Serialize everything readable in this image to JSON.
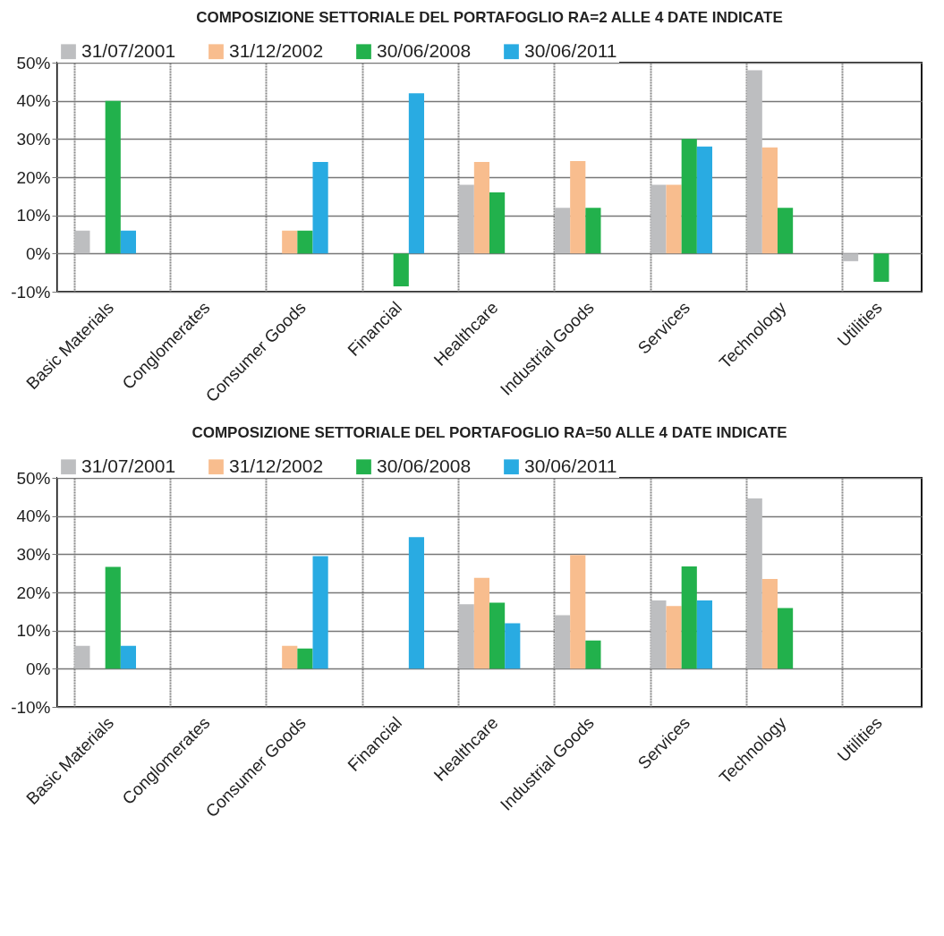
{
  "chart_data": [
    {
      "type": "bar",
      "title": "COMPOSIZIONE SETTORIALE DEL PORTAFOGLIO RA=2 ALLE 4 DATE INDICATE",
      "categories": [
        "Basic Materials",
        "Conglomerates",
        "Consumer Goods",
        "Financial",
        "Healthcare",
        "Industrial Goods",
        "Services",
        "Technology",
        "Utilities"
      ],
      "series": [
        {
          "name": "31/07/2001",
          "color": "#bdbec0",
          "values": [
            6,
            null,
            null,
            null,
            18,
            12,
            18,
            48,
            -2
          ]
        },
        {
          "name": "31/12/2002",
          "color": "#f8bd8e",
          "values": [
            null,
            null,
            6,
            null,
            24,
            24.2,
            18,
            27.8,
            null
          ]
        },
        {
          "name": "30/06/2008",
          "color": "#22b14c",
          "values": [
            40,
            null,
            6,
            -8.6,
            16,
            12,
            30,
            12,
            -7.4
          ]
        },
        {
          "name": "30/06/2011",
          "color": "#29abe2",
          "values": [
            6,
            null,
            24,
            42,
            null,
            null,
            28,
            null,
            null
          ]
        }
      ],
      "ylim": [
        -10,
        50
      ],
      "yticks": [
        {
          "value": -10,
          "label": "-10%"
        },
        {
          "value": 0,
          "label": "0%"
        },
        {
          "value": 10,
          "label": "10%"
        },
        {
          "value": 20,
          "label": "20%"
        },
        {
          "value": 30,
          "label": "30%"
        },
        {
          "value": 40,
          "label": "40%"
        },
        {
          "value": 50,
          "label": "50%"
        }
      ],
      "grid": true,
      "legend": "top"
    },
    {
      "type": "bar",
      "title": "COMPOSIZIONE SETTORIALE DEL PORTAFOGLIO RA=50 ALLE 4 DATE INDICATE",
      "categories": [
        "Basic Materials",
        "Conglomerates",
        "Consumer Goods",
        "Financial",
        "Healthcare",
        "Industrial Goods",
        "Services",
        "Technology",
        "Utilities"
      ],
      "series": [
        {
          "name": "31/07/2001",
          "color": "#bdbec0",
          "values": [
            6,
            null,
            null,
            null,
            16.9,
            14,
            17.9,
            44.6,
            null
          ]
        },
        {
          "name": "31/12/2002",
          "color": "#f8bd8e",
          "values": [
            null,
            null,
            6,
            null,
            23.8,
            29.8,
            16.4,
            23.5,
            null
          ]
        },
        {
          "name": "30/06/2008",
          "color": "#22b14c",
          "values": [
            26.7,
            null,
            5.3,
            null,
            17.3,
            7.4,
            26.8,
            15.9,
            null
          ]
        },
        {
          "name": "30/06/2011",
          "color": "#29abe2",
          "values": [
            6,
            null,
            29.5,
            34.5,
            11.9,
            null,
            17.9,
            null,
            null
          ]
        }
      ],
      "ylim": [
        -10,
        50
      ],
      "yticks": [
        {
          "value": -10,
          "label": "-10%"
        },
        {
          "value": 0,
          "label": "0%"
        },
        {
          "value": 10,
          "label": "10%"
        },
        {
          "value": 20,
          "label": "20%"
        },
        {
          "value": 30,
          "label": "30%"
        },
        {
          "value": 40,
          "label": "40%"
        },
        {
          "value": 50,
          "label": "50%"
        }
      ],
      "grid": true,
      "legend": "top"
    }
  ]
}
